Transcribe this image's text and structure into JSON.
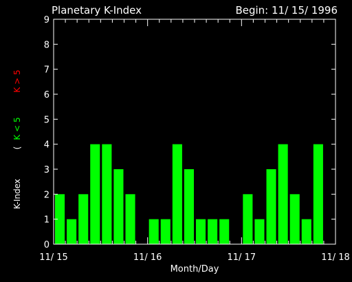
{
  "chart_data": {
    "type": "bar",
    "title": "Planetary K-Index",
    "begin_label": "Begin: 11/ 15/ 1996",
    "xlabel": "Month/Day",
    "ylabel_main": "K-Index",
    "ylabel_low": "K < 5",
    "ylabel_high": "K > 5",
    "ylim": [
      0,
      9
    ],
    "yticks": [
      "0",
      "1",
      "2",
      "3",
      "4",
      "5",
      "6",
      "7",
      "8",
      "9"
    ],
    "xtick_labels": [
      "11/ 15",
      "11/ 16",
      "11/ 17",
      "11/ 18"
    ],
    "bars_per_day": 8,
    "values": [
      2,
      1,
      2,
      4,
      4,
      3,
      2,
      0,
      1,
      1,
      4,
      3,
      1,
      1,
      1,
      0,
      2,
      1,
      3,
      4,
      2,
      1,
      4
    ],
    "colors": {
      "low": "#00ff00",
      "high": "#ff0000",
      "axis": "#ffffff",
      "background": "#000000"
    },
    "legend": "left"
  }
}
